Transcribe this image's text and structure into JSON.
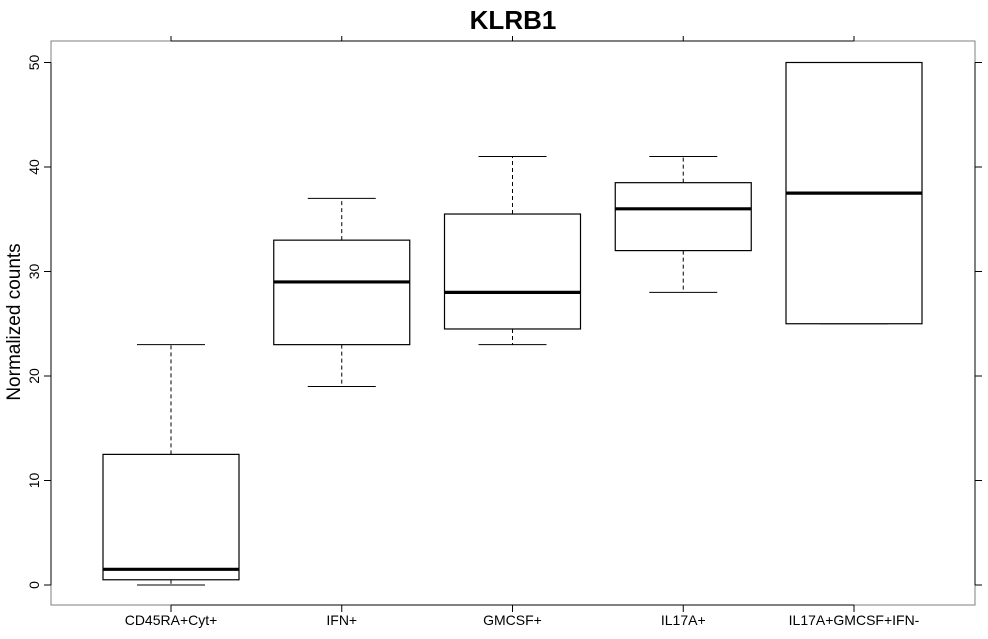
{
  "chart_data": {
    "type": "boxplot",
    "title": "KLRB1",
    "xlabel": "",
    "ylabel": "Normalized counts",
    "ylim": [
      -2,
      52
    ],
    "yticks": [
      0,
      10,
      20,
      30,
      40,
      50
    ],
    "categories": [
      "CD45RA+Cyt+",
      "IFN+",
      "GMCSF+",
      "IL17A+",
      "IL17A+GMCSF+IFN-"
    ],
    "boxes": [
      {
        "category": "CD45RA+Cyt+",
        "min": 0,
        "q1": 0.5,
        "median": 1.5,
        "q3": 12.5,
        "max": 23
      },
      {
        "category": "IFN+",
        "min": 19,
        "q1": 23,
        "median": 29,
        "q3": 33,
        "max": 37
      },
      {
        "category": "GMCSF+",
        "min": 23,
        "q1": 24.5,
        "median": 28,
        "q3": 35.5,
        "max": 41
      },
      {
        "category": "IL17A+",
        "min": 28,
        "q1": 32,
        "median": 36,
        "q3": 38.5,
        "max": 41
      },
      {
        "category": "IL17A+GMCSF+IFN-",
        "min": 25,
        "q1": 25,
        "median": 37.5,
        "q3": 50,
        "max": 50
      }
    ],
    "grid": false,
    "legend": "none"
  }
}
